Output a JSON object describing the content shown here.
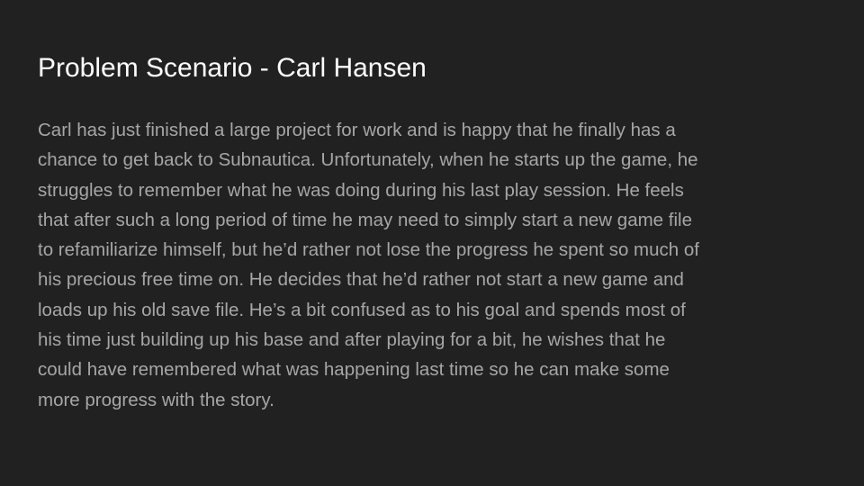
{
  "slide": {
    "title": "Problem Scenario - Carl Hansen",
    "body_lines": [
      "Carl has just finished a large project for work and is happy that he finally has a",
      "chance to get back to Subnautica. Unfortunately, when he starts up the game, he",
      "struggles to remember what he was doing during his last play session. He feels",
      "that after such a long period of time he may need to simply start a new game file",
      "to refamiliarize himself, but he’d rather not lose the progress he spent so much of",
      "his precious free time on. He decides that he’d rather not start a new game and",
      "loads up his old save file. He’s a bit confused as to his goal and spends most of",
      "his time just building up his base and after playing for a bit, he wishes that he",
      "could have remembered what was happening last time so he can make some",
      "more progress with the story."
    ]
  },
  "colors": {
    "background": "#212121",
    "title": "#ffffff",
    "body": "#a6a6a6"
  }
}
